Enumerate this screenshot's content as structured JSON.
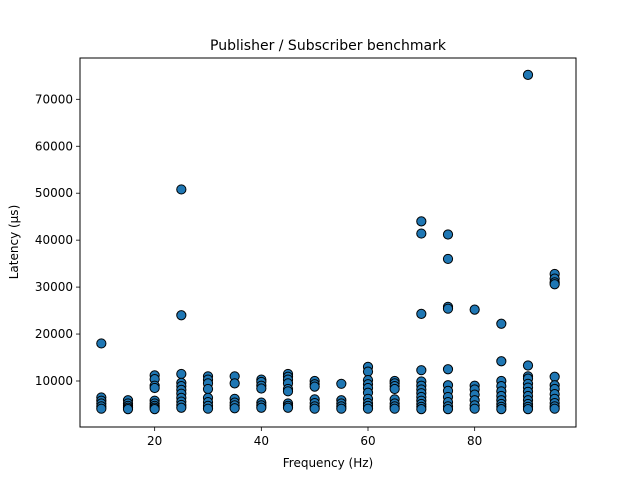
{
  "chart_data": {
    "type": "scatter",
    "title": "Publisher / Subscriber benchmark",
    "xlabel": "Frequency (Hz)",
    "ylabel": "Latency (µs)",
    "xlim": [
      6,
      99
    ],
    "ylim": [
      200,
      78800
    ],
    "xticks": [
      20,
      40,
      60,
      80
    ],
    "yticks": [
      10000,
      20000,
      30000,
      40000,
      50000,
      60000,
      70000
    ],
    "grid": false,
    "marker_color": "#1f77b4",
    "marker_edge": "#000000",
    "points": [
      [
        10,
        18000
      ],
      [
        10,
        6500
      ],
      [
        10,
        5800
      ],
      [
        10,
        5200
      ],
      [
        10,
        4600
      ],
      [
        10,
        4100
      ],
      [
        15,
        5900
      ],
      [
        15,
        5200
      ],
      [
        15,
        4700
      ],
      [
        15,
        4300
      ],
      [
        15,
        4000
      ],
      [
        20,
        11200
      ],
      [
        20,
        10400
      ],
      [
        20,
        9000
      ],
      [
        20,
        8500
      ],
      [
        20,
        5800
      ],
      [
        20,
        5200
      ],
      [
        20,
        4700
      ],
      [
        20,
        4300
      ],
      [
        20,
        4000
      ],
      [
        25,
        50800
      ],
      [
        25,
        24000
      ],
      [
        25,
        11500
      ],
      [
        25,
        9600
      ],
      [
        25,
        8900
      ],
      [
        25,
        8100
      ],
      [
        25,
        7300
      ],
      [
        25,
        6400
      ],
      [
        25,
        5600
      ],
      [
        25,
        4900
      ],
      [
        25,
        4300
      ],
      [
        30,
        11000
      ],
      [
        30,
        10300
      ],
      [
        30,
        9500
      ],
      [
        30,
        8300
      ],
      [
        30,
        6400
      ],
      [
        30,
        5500
      ],
      [
        30,
        4700
      ],
      [
        30,
        4100
      ],
      [
        35,
        11000
      ],
      [
        35,
        9500
      ],
      [
        35,
        6200
      ],
      [
        35,
        5400
      ],
      [
        35,
        4800
      ],
      [
        35,
        4200
      ],
      [
        40,
        10300
      ],
      [
        40,
        9800
      ],
      [
        40,
        9000
      ],
      [
        40,
        8400
      ],
      [
        40,
        5400
      ],
      [
        40,
        4800
      ],
      [
        40,
        4300
      ],
      [
        45,
        11500
      ],
      [
        45,
        10900
      ],
      [
        45,
        10300
      ],
      [
        45,
        9500
      ],
      [
        45,
        8300
      ],
      [
        45,
        7800
      ],
      [
        45,
        5200
      ],
      [
        45,
        4700
      ],
      [
        45,
        4300
      ],
      [
        50,
        10000
      ],
      [
        50,
        9300
      ],
      [
        50,
        8800
      ],
      [
        50,
        6100
      ],
      [
        50,
        5300
      ],
      [
        50,
        4600
      ],
      [
        50,
        4100
      ],
      [
        55,
        9400
      ],
      [
        55,
        5900
      ],
      [
        55,
        5200
      ],
      [
        55,
        4600
      ],
      [
        55,
        4100
      ],
      [
        60,
        13000
      ],
      [
        60,
        12000
      ],
      [
        60,
        10200
      ],
      [
        60,
        9300
      ],
      [
        60,
        8500
      ],
      [
        60,
        7500
      ],
      [
        60,
        6200
      ],
      [
        60,
        5300
      ],
      [
        60,
        4700
      ],
      [
        60,
        4100
      ],
      [
        65,
        10000
      ],
      [
        65,
        9500
      ],
      [
        65,
        8900
      ],
      [
        65,
        8300
      ],
      [
        65,
        6100
      ],
      [
        65,
        5200
      ],
      [
        65,
        4600
      ],
      [
        65,
        4100
      ],
      [
        70,
        44000
      ],
      [
        70,
        41400
      ],
      [
        70,
        24300
      ],
      [
        70,
        12300
      ],
      [
        70,
        9900
      ],
      [
        70,
        9000
      ],
      [
        70,
        8200
      ],
      [
        70,
        7400
      ],
      [
        70,
        6600
      ],
      [
        70,
        5800
      ],
      [
        70,
        5100
      ],
      [
        70,
        4500
      ],
      [
        70,
        4000
      ],
      [
        75,
        41200
      ],
      [
        75,
        36000
      ],
      [
        75,
        25800
      ],
      [
        75,
        25400
      ],
      [
        75,
        12500
      ],
      [
        75,
        9100
      ],
      [
        75,
        7900
      ],
      [
        75,
        6600
      ],
      [
        75,
        5500
      ],
      [
        75,
        4600
      ],
      [
        75,
        4000
      ],
      [
        80,
        25200
      ],
      [
        80,
        9000
      ],
      [
        80,
        8200
      ],
      [
        80,
        7100
      ],
      [
        80,
        5900
      ],
      [
        80,
        4800
      ],
      [
        80,
        4100
      ],
      [
        85,
        22200
      ],
      [
        85,
        14200
      ],
      [
        85,
        10000
      ],
      [
        85,
        8900
      ],
      [
        85,
        7800
      ],
      [
        85,
        6800
      ],
      [
        85,
        5900
      ],
      [
        85,
        5100
      ],
      [
        85,
        4500
      ],
      [
        85,
        4000
      ],
      [
        90,
        75200
      ],
      [
        90,
        13300
      ],
      [
        90,
        11000
      ],
      [
        90,
        10500
      ],
      [
        90,
        9400
      ],
      [
        90,
        8600
      ],
      [
        90,
        7700
      ],
      [
        90,
        6800
      ],
      [
        90,
        5900
      ],
      [
        90,
        5100
      ],
      [
        90,
        4500
      ],
      [
        90,
        4000
      ],
      [
        95,
        32800
      ],
      [
        95,
        31800
      ],
      [
        95,
        31000
      ],
      [
        95,
        30600
      ],
      [
        95,
        10900
      ],
      [
        95,
        9100
      ],
      [
        95,
        8300
      ],
      [
        95,
        7200
      ],
      [
        95,
        6200
      ],
      [
        95,
        5300
      ],
      [
        95,
        4600
      ],
      [
        95,
        4100
      ]
    ]
  }
}
